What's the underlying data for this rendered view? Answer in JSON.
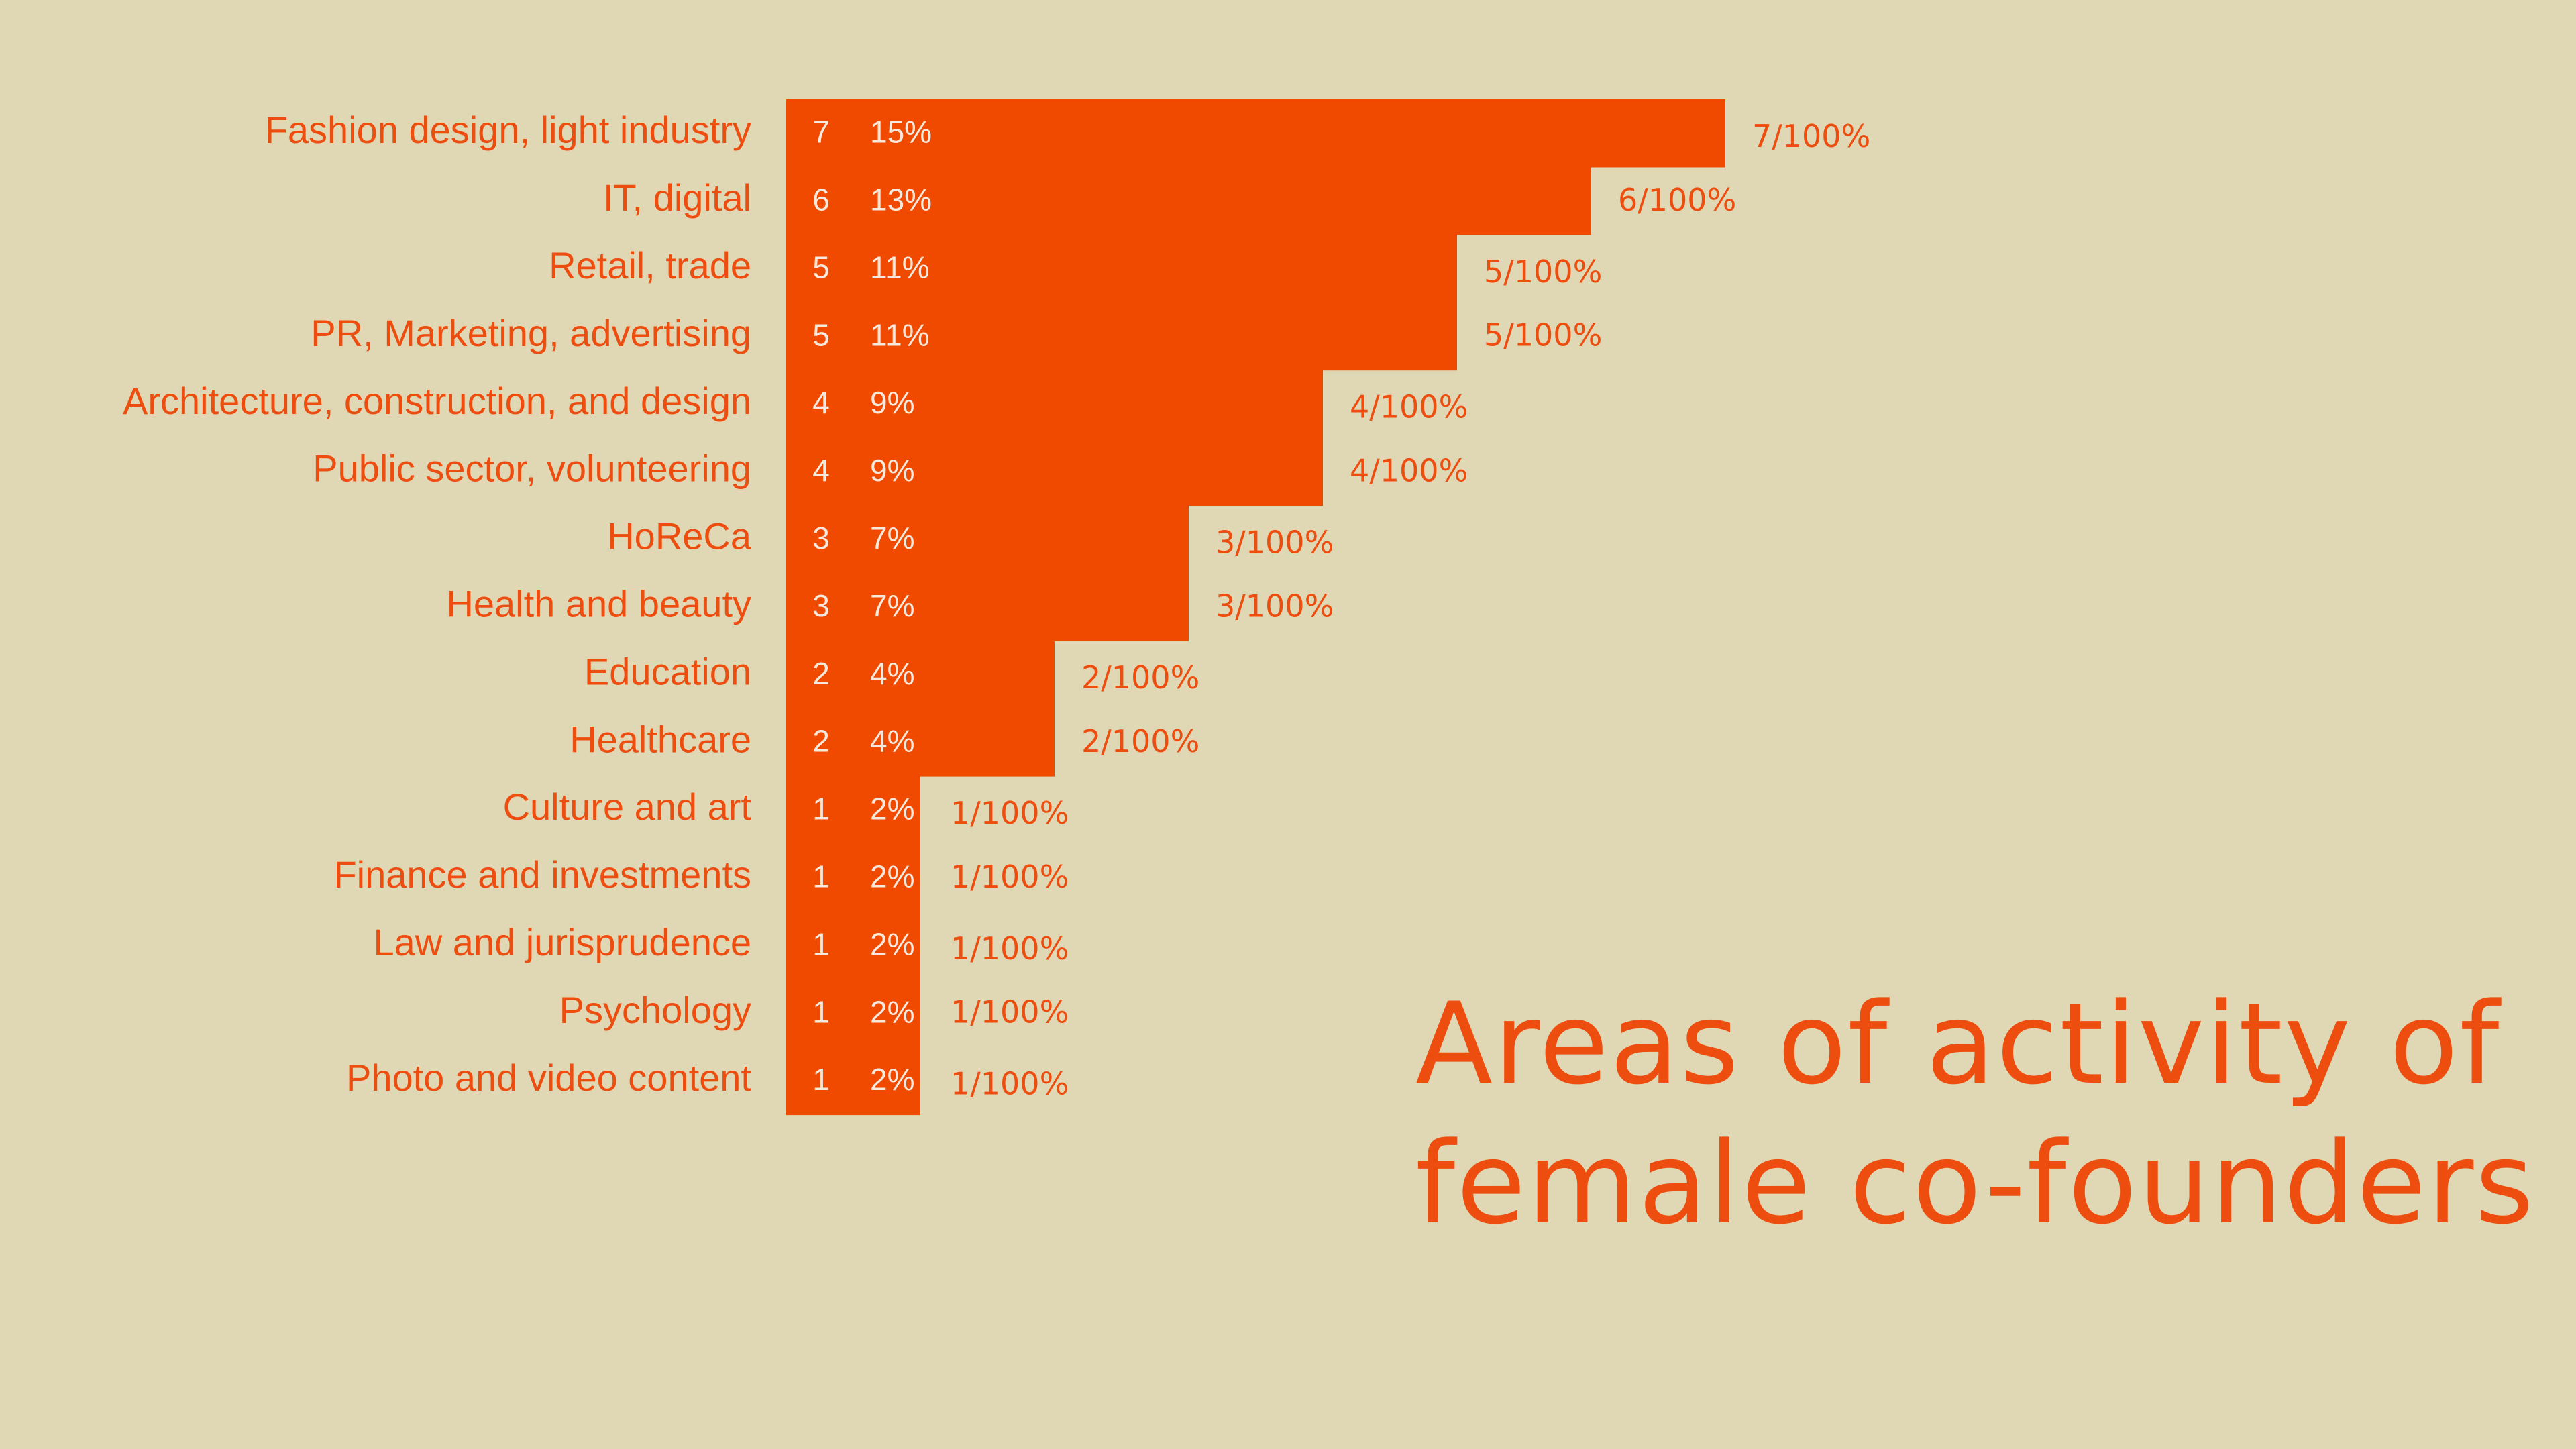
{
  "chart_data": {
    "type": "bar",
    "orientation": "horizontal",
    "title": "Areas of activity of female co-founders",
    "categories": [
      "Fashion design, light industry",
      "IT, digital",
      "Retail, trade",
      "PR, Marketing, advertising",
      "Architecture, construction, and design",
      "Public sector, volunteering",
      "HoReCa",
      "Health and beauty",
      "Education",
      "Healthcare",
      "Culture and art",
      "Finance and investments",
      "Law and jurisprudence",
      "Psychology",
      "Photo and video content"
    ],
    "values": [
      7,
      6,
      5,
      5,
      4,
      4,
      3,
      3,
      2,
      2,
      1,
      1,
      1,
      1,
      1
    ],
    "percent_labels": [
      "15%",
      "13%",
      "11%",
      "11%",
      "9%",
      "9%",
      "7%",
      "7%",
      "4%",
      "4%",
      "2%",
      "2%",
      "2%",
      "2%",
      "2%"
    ],
    "ratio_labels": [
      "7/100%",
      "6/100%",
      "5/100%",
      "5/100%",
      "4/100%",
      "4/100%",
      "3/100%",
      "3/100%",
      "2/100%",
      "2/100%",
      "1/100%",
      "1/100%",
      "1/100%",
      "1/100%",
      "1/100%"
    ],
    "xlim": [
      0,
      7
    ],
    "grid": false,
    "legend": "none",
    "colors": {
      "bar": "#f04a00",
      "label": "#ee4d10",
      "inside_text": "#f6e8dc",
      "background": "#e0d8b4"
    }
  },
  "title": "Areas of activity of female co-founders"
}
